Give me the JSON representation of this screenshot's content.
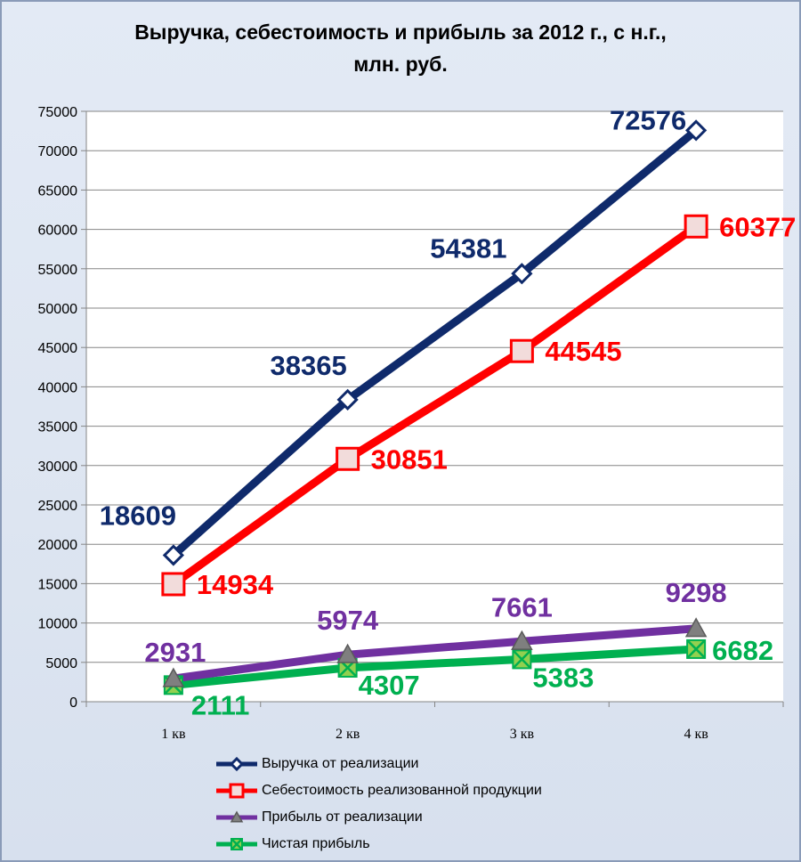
{
  "title_line1": "Выручка, себестоимость и прибыль за 2012 г., с н.г.,",
  "title_line2": "млн. руб.",
  "colors": {
    "revenue": "#0f2a6b",
    "cost": "#ff0000",
    "profit": "#7030a0",
    "net": "#00b050"
  },
  "chart_data": {
    "type": "line",
    "categories": [
      "1 кв",
      "2 кв",
      "3 кв",
      "4 кв"
    ],
    "ylim": [
      0,
      75000
    ],
    "yticks": [
      0,
      5000,
      10000,
      15000,
      20000,
      25000,
      30000,
      35000,
      40000,
      45000,
      50000,
      55000,
      60000,
      65000,
      70000,
      75000
    ],
    "grid": true,
    "legend_position": "bottom",
    "series": [
      {
        "name": "Выручка от реализации",
        "values": [
          18609,
          38365,
          54381,
          72576
        ],
        "color": "#0f2a6b",
        "marker": "diamond"
      },
      {
        "name": "Себестоимость реализованной продукции",
        "values": [
          14934,
          30851,
          44545,
          60377
        ],
        "color": "#ff0000",
        "marker": "square"
      },
      {
        "name": "Прибыль от реализации",
        "values": [
          2931,
          5974,
          7661,
          9298
        ],
        "color": "#7030a0",
        "marker": "triangle"
      },
      {
        "name": "Чистая прибыль",
        "values": [
          2111,
          4307,
          5383,
          6682
        ],
        "color": "#00b050",
        "marker": "x"
      }
    ]
  }
}
